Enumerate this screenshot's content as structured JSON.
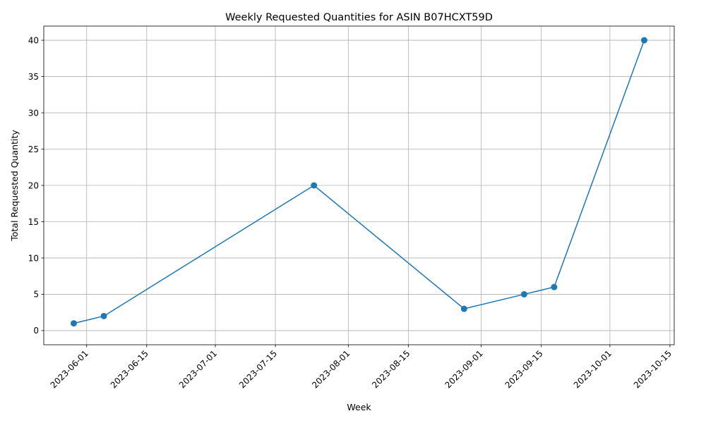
{
  "chart_data": {
    "type": "line",
    "title": "Weekly Requested Quantities for ASIN B07HCXT59D",
    "xlabel": "Week",
    "ylabel": "Total Requested Quantity",
    "x_ticks": [
      "2023-06-01",
      "2023-06-15",
      "2023-07-01",
      "2023-07-15",
      "2023-08-01",
      "2023-08-15",
      "2023-09-01",
      "2023-09-15",
      "2023-10-01",
      "2023-10-15"
    ],
    "y_ticks": [
      0,
      5,
      10,
      15,
      20,
      25,
      30,
      35,
      40
    ],
    "ylim": [
      -1.95,
      41.95
    ],
    "xlim": [
      "2023-05-22",
      "2023-10-16"
    ],
    "grid": true,
    "series": [
      {
        "color": "#1f77b4",
        "marker": "circle",
        "points": [
          {
            "x": "2023-05-29",
            "y": 1
          },
          {
            "x": "2023-06-05",
            "y": 2
          },
          {
            "x": "2023-07-24",
            "y": 20
          },
          {
            "x": "2023-08-28",
            "y": 3
          },
          {
            "x": "2023-09-11",
            "y": 5
          },
          {
            "x": "2023-09-18",
            "y": 6
          },
          {
            "x": "2023-10-09",
            "y": 40
          }
        ]
      }
    ]
  }
}
